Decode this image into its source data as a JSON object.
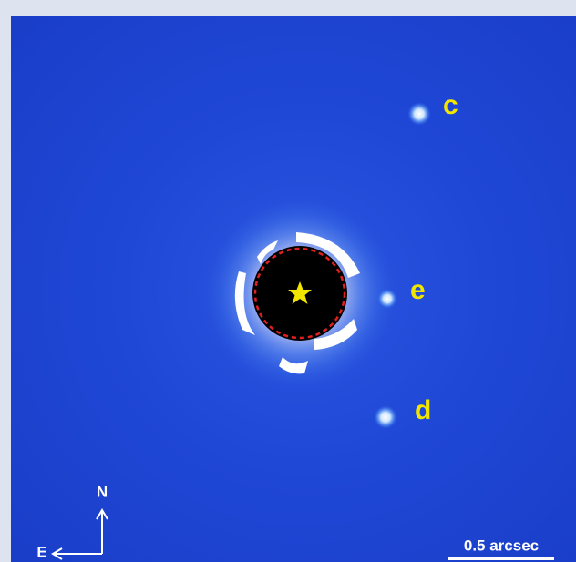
{
  "labels": {
    "planet_c": "c",
    "planet_e": "e",
    "planet_d": "d"
  },
  "compass": {
    "north": "N",
    "east": "E"
  },
  "scale_bar": {
    "label": "0.5 arcsec"
  }
}
